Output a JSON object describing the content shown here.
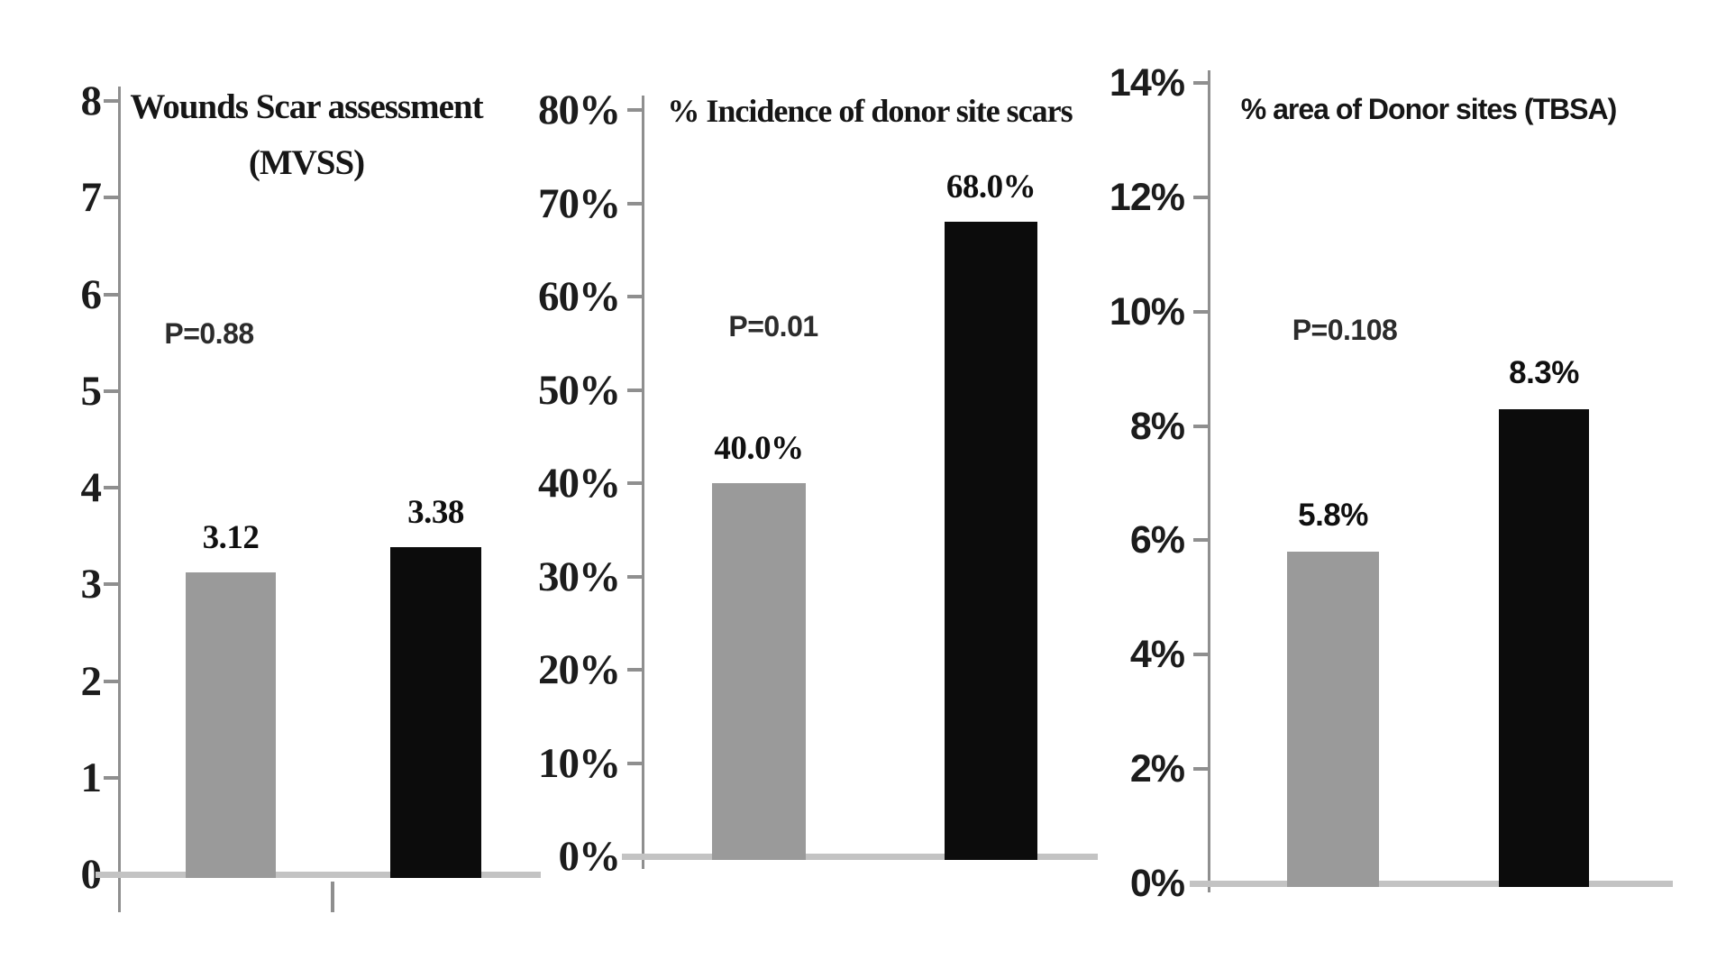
{
  "figure": {
    "background": "#ffffff",
    "bar_gray": "#9a9a9a",
    "bar_black": "#0c0c0c",
    "axis_color": "#8f8f8f",
    "baseline_color": "#c3c3c3"
  },
  "chart_data": [
    {
      "type": "bar",
      "title": "Wounds Scar assessment (MVSS)",
      "title_lines": [
        "Wounds Scar assessment",
        "(MVSS)"
      ],
      "p_value_label": "P=0.88",
      "ylim": [
        0,
        8
      ],
      "ytick_labels": [
        "8",
        "7",
        "6",
        "5",
        "4",
        "3",
        "2",
        "1",
        "0"
      ],
      "grid": false,
      "legend": "none",
      "categories": [
        "",
        ""
      ],
      "series": [
        {
          "name": "group-gray",
          "value": 3.12,
          "label": "3.12",
          "color": "#9a9a9a"
        },
        {
          "name": "group-black",
          "value": 3.38,
          "label": "3.38",
          "color": "#0c0c0c"
        }
      ]
    },
    {
      "type": "bar",
      "title": "% Incidence of donor site scars",
      "p_value_label": "P=0.01",
      "ylim": [
        0,
        80
      ],
      "ytick_labels": [
        "80%",
        "70%",
        "60%",
        "50%",
        "40%",
        "30%",
        "20%",
        "10%",
        "0%"
      ],
      "grid": false,
      "legend": "none",
      "categories": [
        "",
        ""
      ],
      "series": [
        {
          "name": "group-gray",
          "value": 40.0,
          "label": "40.0%",
          "color": "#9a9a9a"
        },
        {
          "name": "group-black",
          "value": 68.0,
          "label": "68.0%",
          "color": "#0c0c0c"
        }
      ]
    },
    {
      "type": "bar",
      "title": "% area of Donor sites (TBSA)",
      "p_value_label": "P=0.108",
      "ylim": [
        0,
        14
      ],
      "ytick_labels": [
        "14%",
        "12%",
        "10%",
        "8%",
        "6%",
        "4%",
        "2%",
        "0%"
      ],
      "grid": false,
      "legend": "none",
      "categories": [
        "",
        ""
      ],
      "series": [
        {
          "name": "group-gray",
          "value": 5.8,
          "label": "5.8%",
          "color": "#9a9a9a"
        },
        {
          "name": "group-black",
          "value": 8.3,
          "label": "8.3%",
          "color": "#0c0c0c"
        }
      ]
    }
  ]
}
